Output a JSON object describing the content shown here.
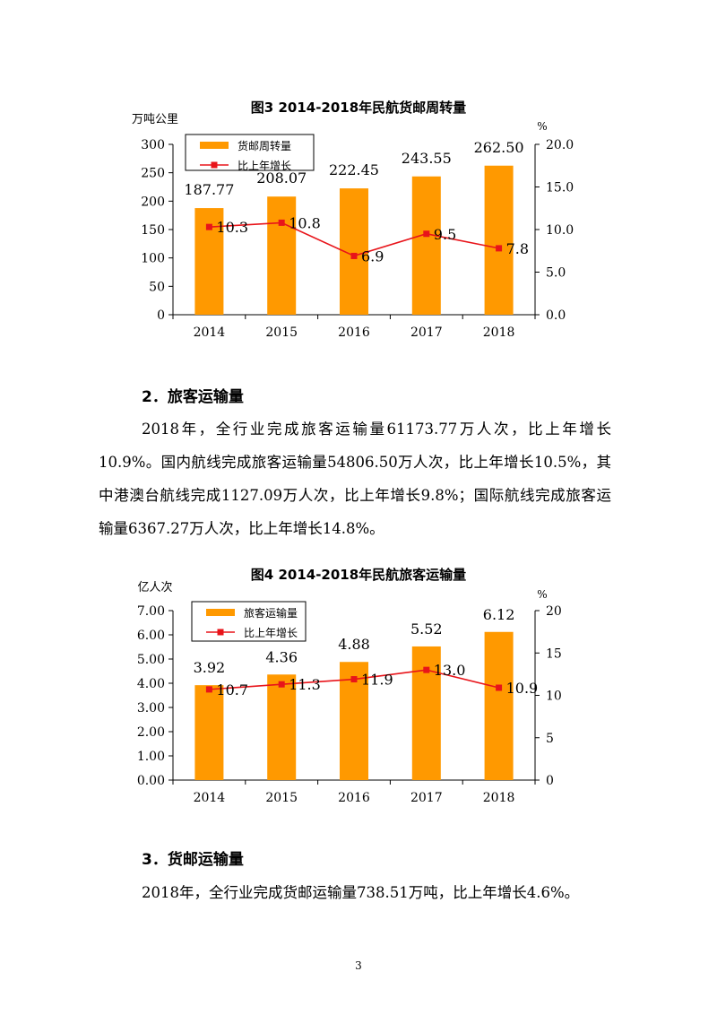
{
  "page_number": "3",
  "sections": [
    {
      "heading": "2．旅客运输量",
      "paragraph": "2018年，全行业完成旅客运输量61173.77万人次，比上年增长10.9%。国内航线完成旅客运输量54806.50万人次，比上年增长10.5%，其中港澳台航线完成1127.09万人次，比上年增长9.8%；国际航线完成旅客运输量6367.27万人次，比上年增长14.8%。"
    },
    {
      "heading": "3．货邮运输量",
      "paragraph": "2018年，全行业完成货邮运输量738.51万吨，比上年增长4.6%。"
    }
  ],
  "colors": {
    "bar": "#FF9900",
    "line": "#E8141A",
    "marker": "#E8141A"
  },
  "chart_data": [
    {
      "type": "bar",
      "title": "图3 2014-2018年民航货邮周转量",
      "categories": [
        "2014",
        "2015",
        "2016",
        "2017",
        "2018"
      ],
      "left_unit": "万吨公里",
      "right_unit": "%",
      "left_ticks": [
        "0",
        "50",
        "100",
        "150",
        "200",
        "250",
        "300"
      ],
      "right_ticks": [
        "0.0",
        "5.0",
        "10.0",
        "15.0",
        "20.0"
      ],
      "ylim_left": [
        0,
        300
      ],
      "ylim_right": [
        0,
        20
      ],
      "series": [
        {
          "name": "货邮周转量",
          "type": "bar",
          "axis": "left",
          "values": [
            187.77,
            208.07,
            222.45,
            243.55,
            262.5
          ],
          "labels": [
            "187.77",
            "208.07",
            "222.45",
            "243.55",
            "262.50"
          ]
        },
        {
          "name": "比上年增长",
          "type": "line",
          "axis": "right",
          "values": [
            10.3,
            10.8,
            6.9,
            9.5,
            7.8
          ],
          "labels": [
            "10.3",
            "10.8",
            "6.9",
            "9.5",
            "7.8"
          ]
        }
      ],
      "legend_position": "top-left"
    },
    {
      "type": "bar",
      "title": "图4 2014-2018年民航旅客运输量",
      "categories": [
        "2014",
        "2015",
        "2016",
        "2017",
        "2018"
      ],
      "left_unit": "亿人次",
      "right_unit": "%",
      "left_ticks": [
        "0.00",
        "1.00",
        "2.00",
        "3.00",
        "4.00",
        "5.00",
        "6.00",
        "7.00"
      ],
      "right_ticks": [
        "0",
        "5",
        "10",
        "15",
        "20"
      ],
      "ylim_left": [
        0,
        7
      ],
      "ylim_right": [
        0,
        20
      ],
      "series": [
        {
          "name": "旅客运输量",
          "type": "bar",
          "axis": "left",
          "values": [
            3.92,
            4.36,
            4.88,
            5.52,
            6.12
          ],
          "labels": [
            "3.92",
            "4.36",
            "4.88",
            "5.52",
            "6.12"
          ]
        },
        {
          "name": "比上年增长",
          "type": "line",
          "axis": "right",
          "values": [
            10.7,
            11.3,
            11.9,
            13.0,
            10.9
          ],
          "labels": [
            "10.7",
            "11.3",
            "11.9",
            "13.0",
            "10.9"
          ]
        }
      ],
      "legend_position": "top-left"
    }
  ]
}
